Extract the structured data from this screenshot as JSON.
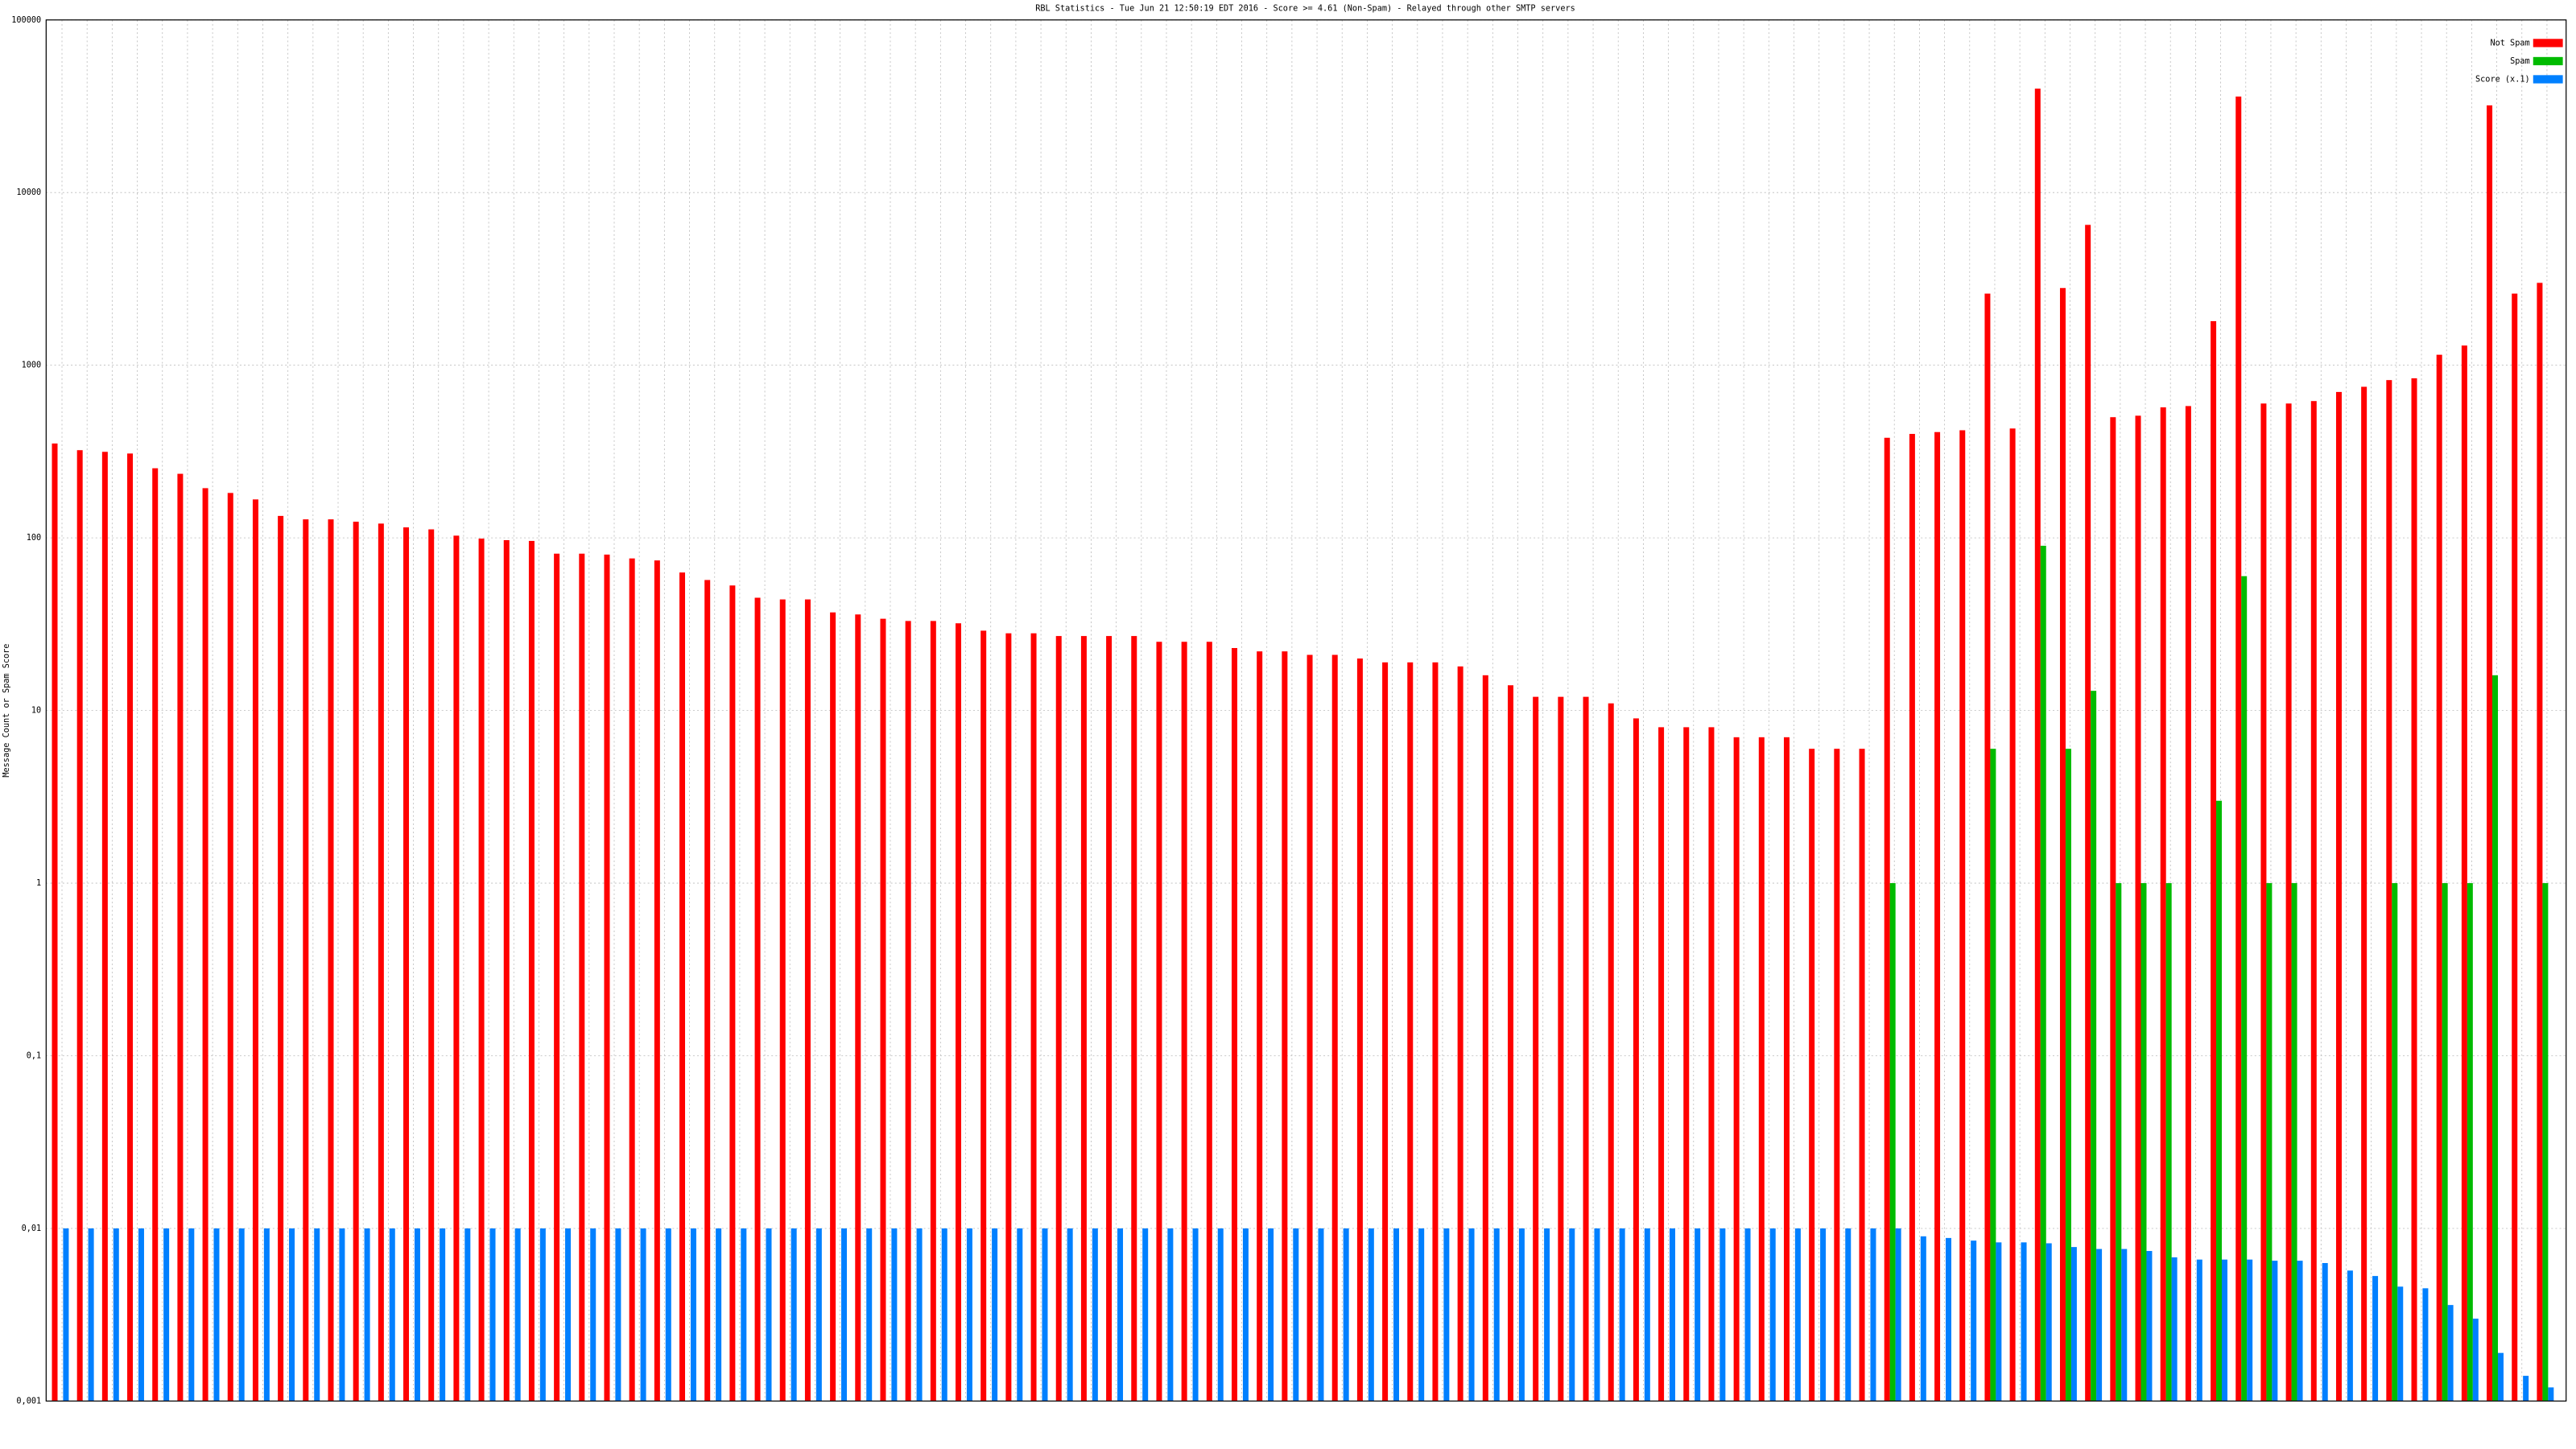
{
  "chart_data": {
    "type": "bar",
    "title": "RBL Statistics - Tue Jun 21 12:50:19 EDT 2016 - Score >= 4.61 (Non-Spam) - Relayed through other SMTP servers",
    "y_label": "Message Count or Spam Score",
    "log_scale": true,
    "grid": true,
    "legend": "upper right",
    "categories": [
      null,
      null,
      null,
      null,
      null,
      null,
      null,
      null,
      null,
      null,
      null,
      null,
      null,
      null,
      null,
      null,
      null,
      null,
      null,
      null,
      null,
      null,
      null,
      null,
      null,
      null,
      null,
      null,
      null,
      null,
      null,
      null,
      null,
      null,
      null,
      null,
      null,
      null,
      null,
      null,
      null,
      null,
      null,
      null,
      null,
      null,
      null,
      null,
      null,
      null,
      null,
      null,
      null,
      null,
      null,
      null,
      null,
      null,
      null,
      null,
      null,
      null,
      null,
      null,
      null,
      null,
      null,
      null,
      null,
      null,
      null,
      null,
      null,
      null,
      null,
      null,
      null,
      null,
      null,
      null,
      null,
      null,
      null,
      null,
      null,
      null,
      null,
      null,
      null,
      null,
      null,
      null,
      null,
      null,
      null,
      null,
      null,
      null,
      null,
      null
    ],
    "series": [
      {
        "name": "Not Spam",
        "color": "#ff0000",
        "values": [
          352,
          322,
          315,
          308,
          253,
          235,
          194,
          182,
          167,
          134,
          128,
          128,
          124,
          121,
          115,
          112,
          103,
          99,
          97,
          96,
          81,
          81,
          80,
          76,
          74,
          63,
          57,
          53,
          45,
          44,
          44,
          37,
          36,
          34,
          33,
          33,
          32,
          29,
          28,
          28,
          27,
          27,
          27,
          27,
          25,
          25,
          25,
          23,
          22,
          22,
          21,
          21,
          20,
          19,
          19,
          19,
          18,
          16,
          14,
          12,
          12,
          12,
          11,
          9,
          8,
          8,
          8,
          7,
          7,
          7,
          6,
          6,
          6,
          380,
          400,
          410,
          420,
          2600,
          430,
          40000,
          2800,
          6500,
          500,
          510,
          570,
          580,
          1800,
          36000,
          600,
          600,
          620,
          700,
          750,
          820,
          840,
          1150,
          1300,
          32000,
          2600,
          3000
        ]
      },
      {
        "name": "Spam",
        "color": "#00bb00",
        "values": [
          null,
          null,
          null,
          null,
          null,
          null,
          null,
          null,
          null,
          null,
          null,
          null,
          null,
          null,
          null,
          null,
          null,
          null,
          null,
          null,
          null,
          null,
          null,
          null,
          null,
          null,
          null,
          null,
          null,
          null,
          null,
          null,
          null,
          null,
          null,
          null,
          null,
          null,
          null,
          null,
          null,
          null,
          null,
          null,
          null,
          null,
          null,
          null,
          null,
          null,
          null,
          null,
          null,
          null,
          null,
          null,
          null,
          null,
          null,
          null,
          null,
          null,
          null,
          null,
          null,
          null,
          null,
          null,
          null,
          null,
          null,
          null,
          null,
          1,
          null,
          null,
          null,
          6,
          null,
          90,
          6,
          13,
          1,
          1,
          1,
          null,
          3,
          60,
          1,
          1,
          null,
          null,
          null,
          1,
          null,
          1,
          1,
          16,
          null,
          1
        ]
      },
      {
        "name": "Score (x.1)",
        "color": "#0080ff",
        "values": [
          0.01,
          0.01,
          0.01,
          0.01,
          0.01,
          0.01,
          0.01,
          0.01,
          0.01,
          0.01,
          0.01,
          0.01,
          0.01,
          0.01,
          0.01,
          0.01,
          0.01,
          0.01,
          0.01,
          0.01,
          0.01,
          0.01,
          0.01,
          0.01,
          0.01,
          0.01,
          0.01,
          0.01,
          0.01,
          0.01,
          0.01,
          0.01,
          0.01,
          0.01,
          0.01,
          0.01,
          0.01,
          0.01,
          0.01,
          0.01,
          0.01,
          0.01,
          0.01,
          0.01,
          0.01,
          0.01,
          0.01,
          0.01,
          0.01,
          0.01,
          0.01,
          0.01,
          0.01,
          0.01,
          0.01,
          0.01,
          0.01,
          0.01,
          0.01,
          0.01,
          0.01,
          0.01,
          0.01,
          0.01,
          0.01,
          0.01,
          0.01,
          0.01,
          0.01,
          0.01,
          0.01,
          0.01,
          0.01,
          0.01,
          0.009,
          0.0088,
          0.0085,
          0.0083,
          0.0083,
          0.0082,
          0.0078,
          0.0076,
          0.0076,
          0.0074,
          0.0068,
          0.0066,
          0.0066,
          0.0066,
          0.0065,
          0.0065,
          0.0063,
          0.0057,
          0.0053,
          0.0046,
          0.0045,
          0.0036,
          0.003,
          0.0019,
          0.0014,
          0.0012
        ]
      }
    ],
    "ylim": [
      0.001,
      100000
    ],
    "yticks": [
      {
        "value": 0.001,
        "label": "0,001"
      },
      {
        "value": 0.01,
        "label": "0,01"
      },
      {
        "value": 0.1,
        "label": "0,1"
      },
      1,
      10,
      100,
      1000,
      10000,
      100000
    ]
  }
}
